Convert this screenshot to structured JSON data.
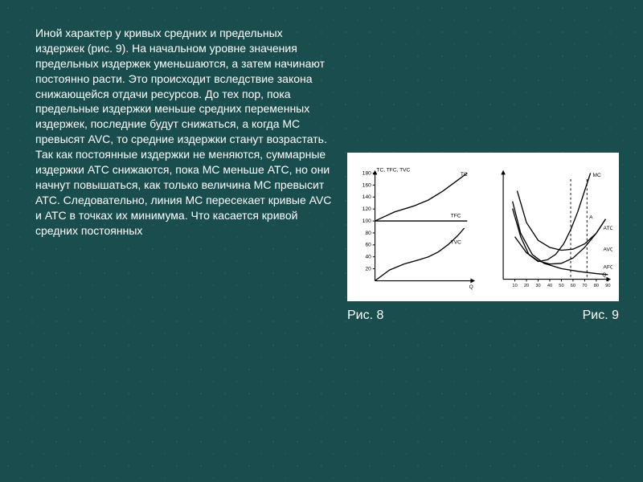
{
  "paragraph": "Иной характер у кривых средних и предельных издержек (рис. 9). На начальном уровне значения предельных издержек уменьшаются, а затем начинают постоянно расти. Это происходит вследствие закона снижающейся отдачи ресурсов.\nДо тех пор, пока предельные издержки меньше средних переменных издержек, последние будут снижаться, а когда МС превысят AVC, то средние издержки станут возрастать. Так как постоянные издержки не меняются, суммарные издержки ATC снижаются, пока МС меньше АТС, но они начнут повышаться, как только величина МС превысит АТС. Следовательно, линия МС пересекает кривые AVC и АТС в точках их минимума. Что касается кривой средних постоянных",
  "caption_left": "Рис. 8",
  "caption_right": "Рис. 9",
  "chart8": {
    "type": "line",
    "background_color": "#ffffff",
    "stroke_color": "#000000",
    "text_color": "#000000",
    "label_fontsize": 7,
    "title": "TC, TFC, TVC",
    "ylim": [
      0,
      180
    ],
    "yticks": [
      20,
      40,
      60,
      80,
      100,
      120,
      140,
      160,
      180
    ],
    "xlim": [
      0,
      100
    ],
    "series": [
      {
        "name": "TC",
        "label": "TC",
        "points": [
          [
            0,
            100
          ],
          [
            20,
            115
          ],
          [
            40,
            125
          ],
          [
            55,
            135
          ],
          [
            70,
            150
          ],
          [
            85,
            168
          ],
          [
            95,
            180
          ]
        ]
      },
      {
        "name": "TFC",
        "label": "TFC",
        "points": [
          [
            0,
            100
          ],
          [
            95,
            100
          ]
        ]
      },
      {
        "name": "TVC",
        "label": "TVC",
        "points": [
          [
            0,
            0
          ],
          [
            15,
            18
          ],
          [
            30,
            28
          ],
          [
            45,
            35
          ],
          [
            55,
            40
          ],
          [
            65,
            48
          ],
          [
            75,
            60
          ],
          [
            85,
            75
          ],
          [
            92,
            88
          ]
        ]
      }
    ],
    "xaxis_label": "Q",
    "line_width": 1.4
  },
  "chart9": {
    "type": "line",
    "background_color": "#ffffff",
    "stroke_color": "#000000",
    "text_color": "#000000",
    "label_fontsize": 7,
    "ylim": [
      0,
      30
    ],
    "xlim": [
      0,
      90
    ],
    "xticks": [
      10,
      20,
      30,
      40,
      50,
      60,
      70,
      80,
      90
    ],
    "series": [
      {
        "name": "MC",
        "label": "MC",
        "points": [
          [
            8,
            20
          ],
          [
            15,
            12
          ],
          [
            22,
            7
          ],
          [
            30,
            5
          ],
          [
            38,
            5.5
          ],
          [
            45,
            7
          ],
          [
            52,
            10
          ],
          [
            58,
            14
          ],
          [
            64,
            19
          ],
          [
            70,
            25
          ],
          [
            75,
            30
          ]
        ]
      },
      {
        "name": "ATC",
        "label": "ATC",
        "points": [
          [
            12,
            25
          ],
          [
            20,
            16
          ],
          [
            30,
            11
          ],
          [
            40,
            9
          ],
          [
            50,
            8.2
          ],
          [
            60,
            8.5
          ],
          [
            70,
            10
          ],
          [
            80,
            13
          ],
          [
            88,
            17
          ]
        ]
      },
      {
        "name": "AVC",
        "label": "AVC",
        "points": [
          [
            10,
            12
          ],
          [
            20,
            7.5
          ],
          [
            30,
            5.2
          ],
          [
            40,
            4.3
          ],
          [
            50,
            4.5
          ],
          [
            60,
            6
          ],
          [
            70,
            9
          ],
          [
            80,
            13
          ],
          [
            88,
            17
          ]
        ]
      },
      {
        "name": "AFC",
        "label": "AFC",
        "points": [
          [
            8,
            22
          ],
          [
            15,
            13
          ],
          [
            25,
            7
          ],
          [
            35,
            4.5
          ],
          [
            50,
            3
          ],
          [
            65,
            2.2
          ],
          [
            80,
            1.6
          ],
          [
            90,
            1.3
          ]
        ]
      }
    ],
    "dashed_verticals": [
      58,
      72
    ],
    "point_label": "A",
    "xaxis_label": "Q",
    "line_width": 1.4
  },
  "style": {
    "body_bg": "#1a4d4d",
    "text_color": "#ffffff",
    "body_fontsize": 14
  }
}
